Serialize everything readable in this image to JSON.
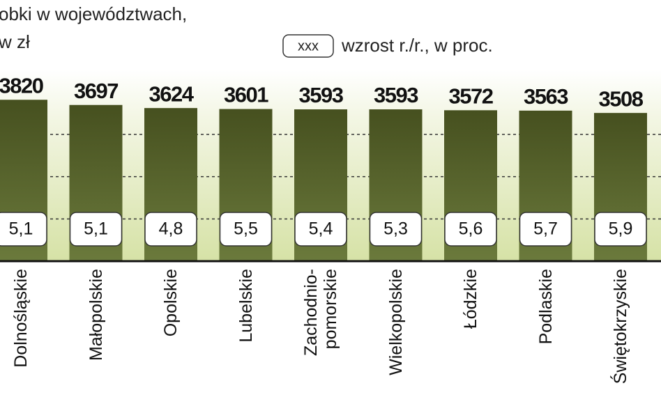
{
  "chart_data": {
    "type": "bar",
    "title": "obki w województwach,",
    "subtitle": "w zł",
    "legend": {
      "sample": "xxx",
      "label": "wzrost r./r., w proc."
    },
    "categories": [
      "Dolnośląskie",
      "Małopolskie",
      "Opolskie",
      "Lubelskie",
      "Zachodnio-\npomorskie",
      "Wielkopolskie",
      "Łódzkie",
      "Podlaskie",
      "Świętokrzyskie"
    ],
    "values": [
      3820,
      3697,
      3624,
      3601,
      3593,
      3593,
      3572,
      3563,
      3508
    ],
    "color": "#4f5b2b",
    "growth": {
      "values": [
        5.1,
        5.1,
        4.8,
        5.5,
        5.4,
        5.3,
        5.6,
        5.7,
        5.9
      ],
      "value_labels": [
        "5,1",
        "5,1",
        "4,8",
        "5,5",
        "5,4",
        "5,3",
        "5,6",
        "5,7",
        "5,9"
      ]
    },
    "ylim": [
      0,
      6000
    ],
    "yticks": [
      1000,
      2000,
      3000
    ],
    "grid": true
  }
}
